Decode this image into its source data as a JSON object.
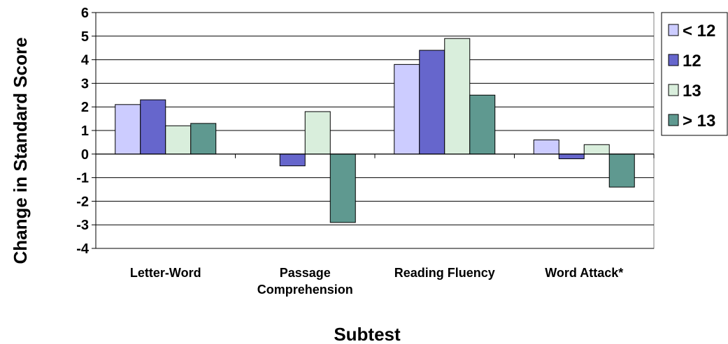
{
  "chart_data": {
    "type": "bar",
    "title": "",
    "xlabel": "Subtest",
    "ylabel": "Change in Standard Score",
    "ylim": [
      -4,
      6
    ],
    "yticks": [
      "6",
      "5",
      "4",
      "3",
      "2",
      "1",
      "0",
      "-1",
      "-2",
      "-3",
      "-4"
    ],
    "grid": true,
    "legend_position": "right",
    "categories": [
      [
        "Letter-Word"
      ],
      [
        "Passage",
        "Comprehension"
      ],
      [
        "Reading Fluency"
      ],
      [
        "Word Attack*"
      ]
    ],
    "series": [
      {
        "name": "< 12",
        "color": "#ccccff",
        "values": [
          2.1,
          0,
          3.8,
          0.6
        ]
      },
      {
        "name": "12",
        "color": "#6666cc",
        "values": [
          2.3,
          -0.5,
          4.4,
          -0.2
        ]
      },
      {
        "name": "13",
        "color": "#d9eedc",
        "values": [
          1.2,
          1.8,
          4.9,
          0.4
        ]
      },
      {
        "name": "> 13",
        "color": "#5f9990",
        "values": [
          1.3,
          -2.9,
          2.5,
          -1.4
        ]
      }
    ]
  }
}
